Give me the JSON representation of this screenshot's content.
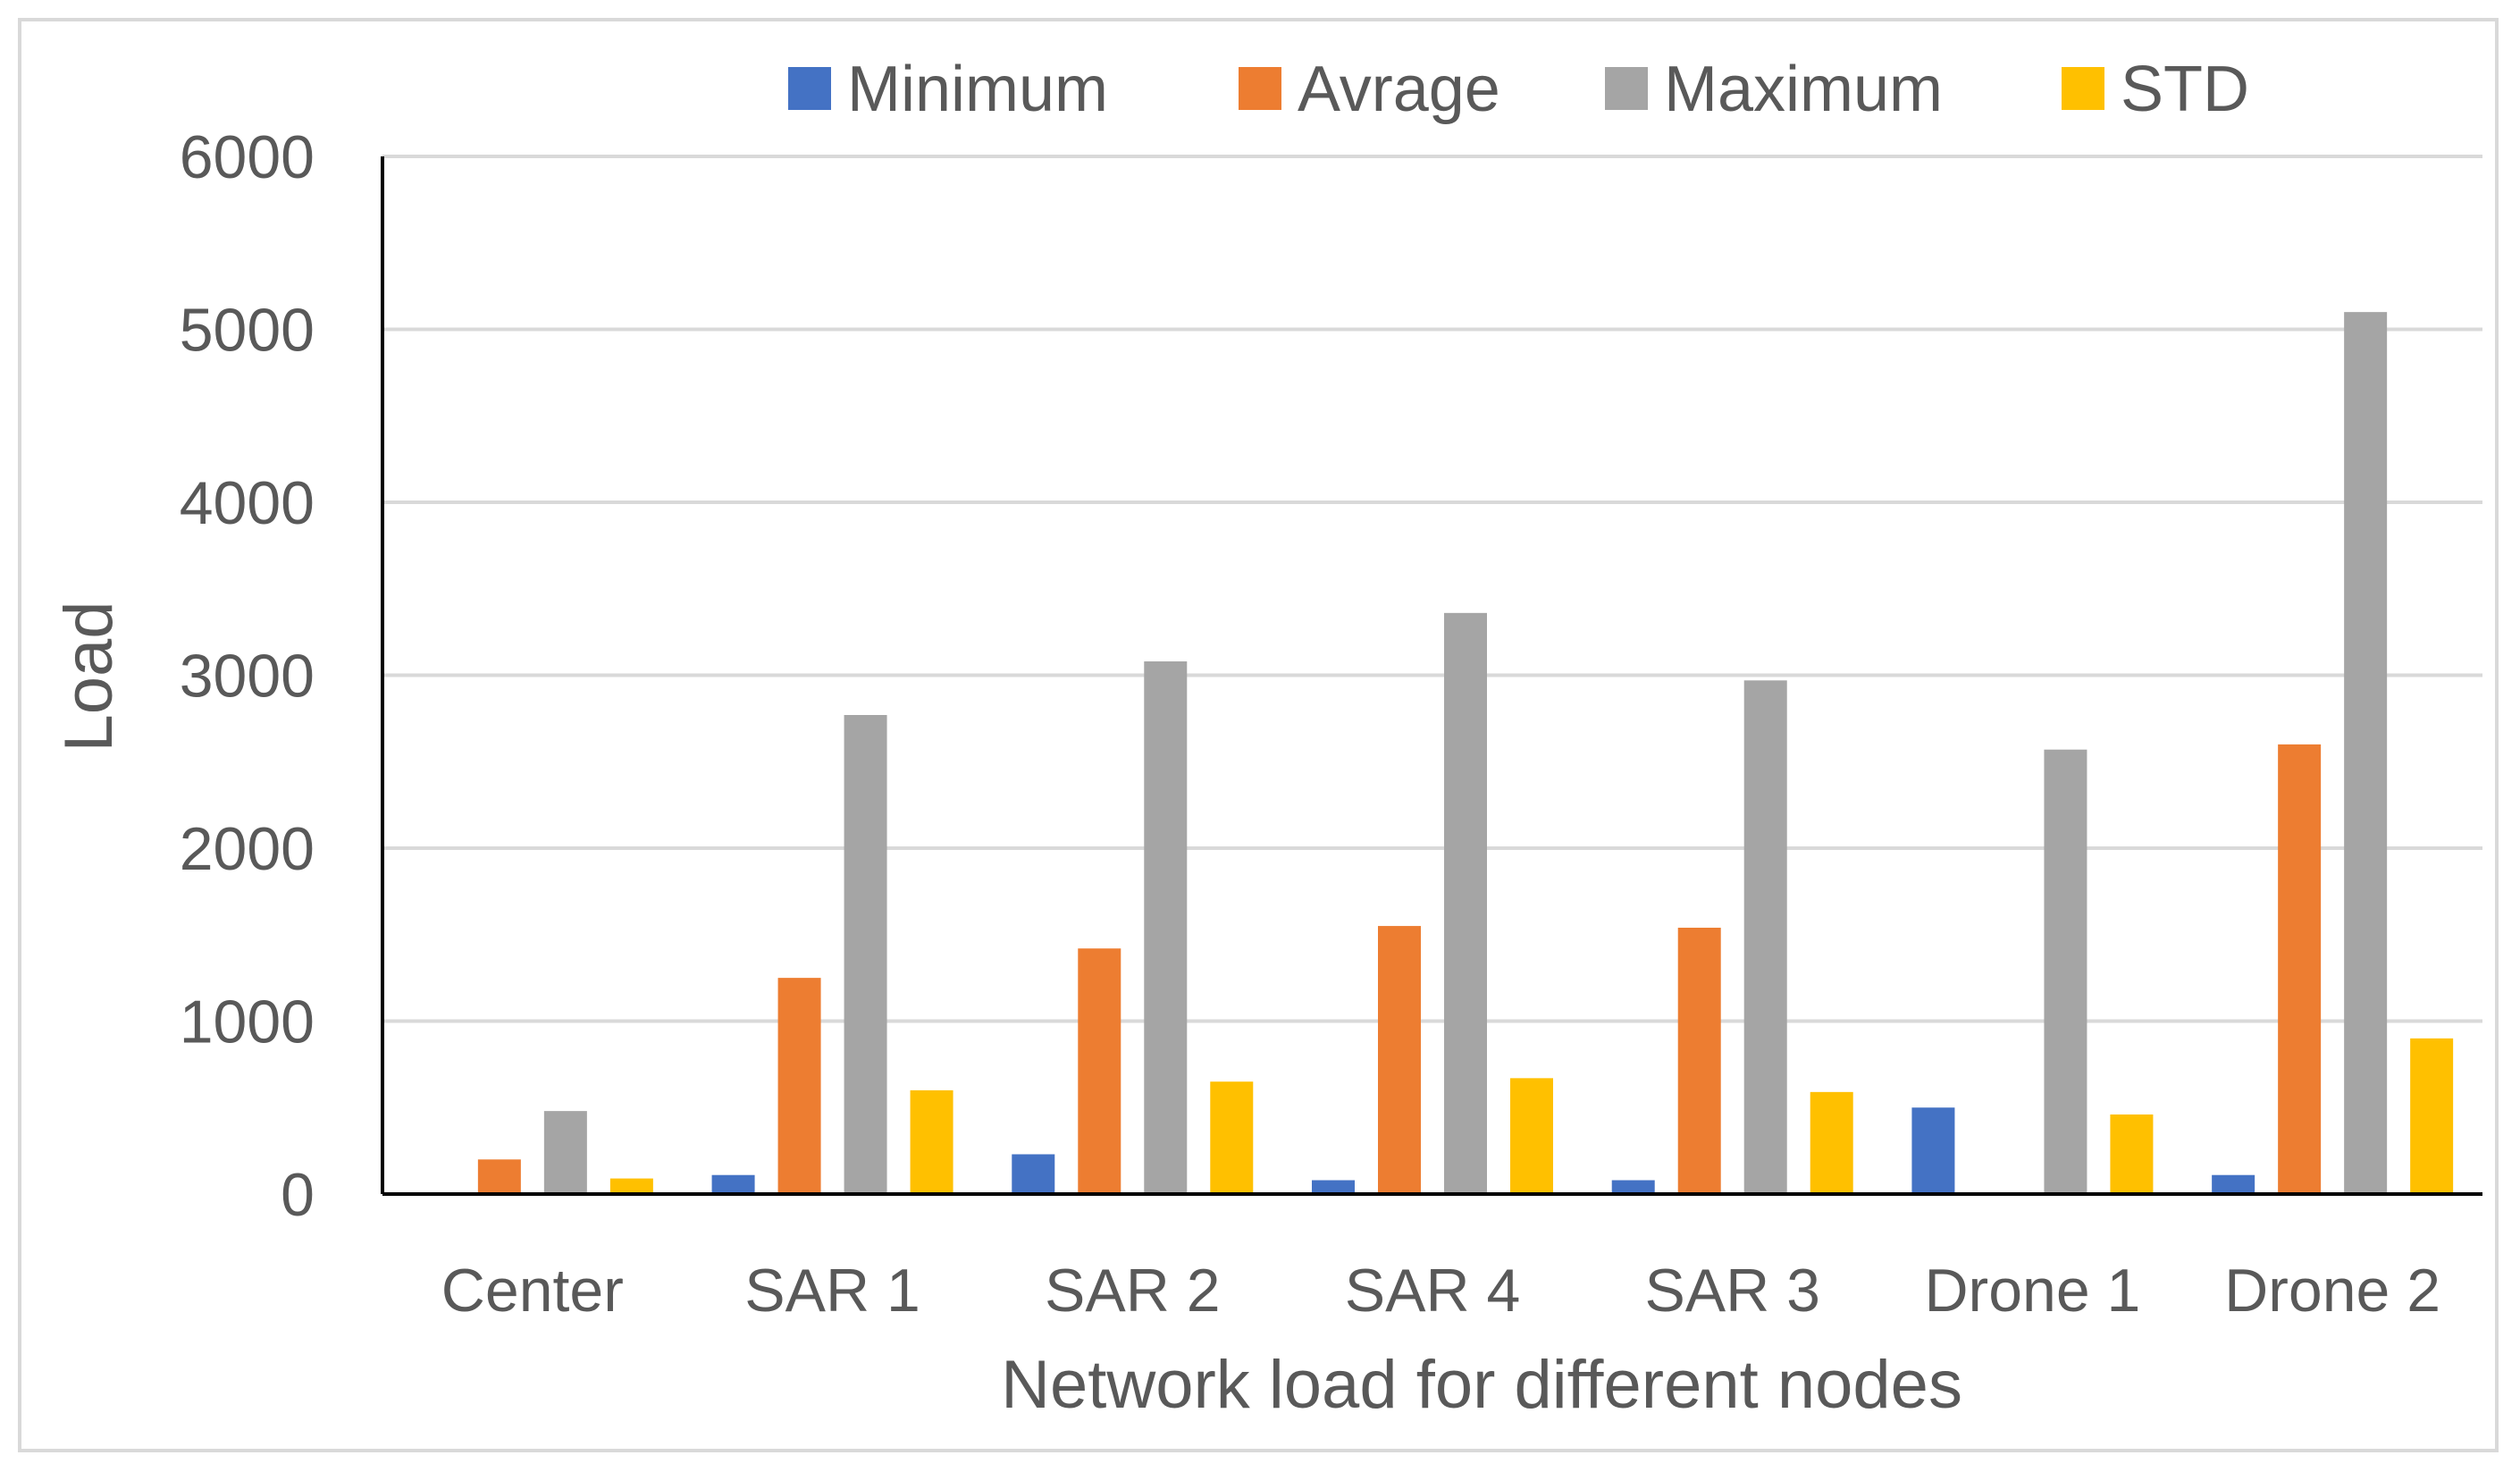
{
  "chart_data": {
    "type": "bar",
    "title": "",
    "xlabel": "Network load for different nodes",
    "ylabel": "Load",
    "ylim": [
      0,
      6000
    ],
    "yticks": [
      0,
      1000,
      2000,
      3000,
      4000,
      5000,
      6000
    ],
    "grid": true,
    "legend_position": "top",
    "categories": [
      "Center",
      "SAR 1",
      "SAR 2",
      "SAR 4",
      "SAR 3",
      "Drone 1",
      "Drone 2"
    ],
    "series": [
      {
        "name": "Minimum",
        "color": "#4472C4",
        "values": [
          0,
          110,
          230,
          80,
          80,
          500,
          110
        ]
      },
      {
        "name": "Avrage",
        "color": "#ED7D31",
        "values": [
          200,
          1250,
          1420,
          1550,
          1540,
          0,
          2600
        ]
      },
      {
        "name": "Maximum",
        "color": "#A5A5A5",
        "values": [
          480,
          2770,
          3080,
          3360,
          2970,
          2570,
          5100
        ]
      },
      {
        "name": "STD",
        "color": "#FFC000",
        "values": [
          90,
          600,
          650,
          670,
          590,
          460,
          900
        ]
      }
    ]
  }
}
